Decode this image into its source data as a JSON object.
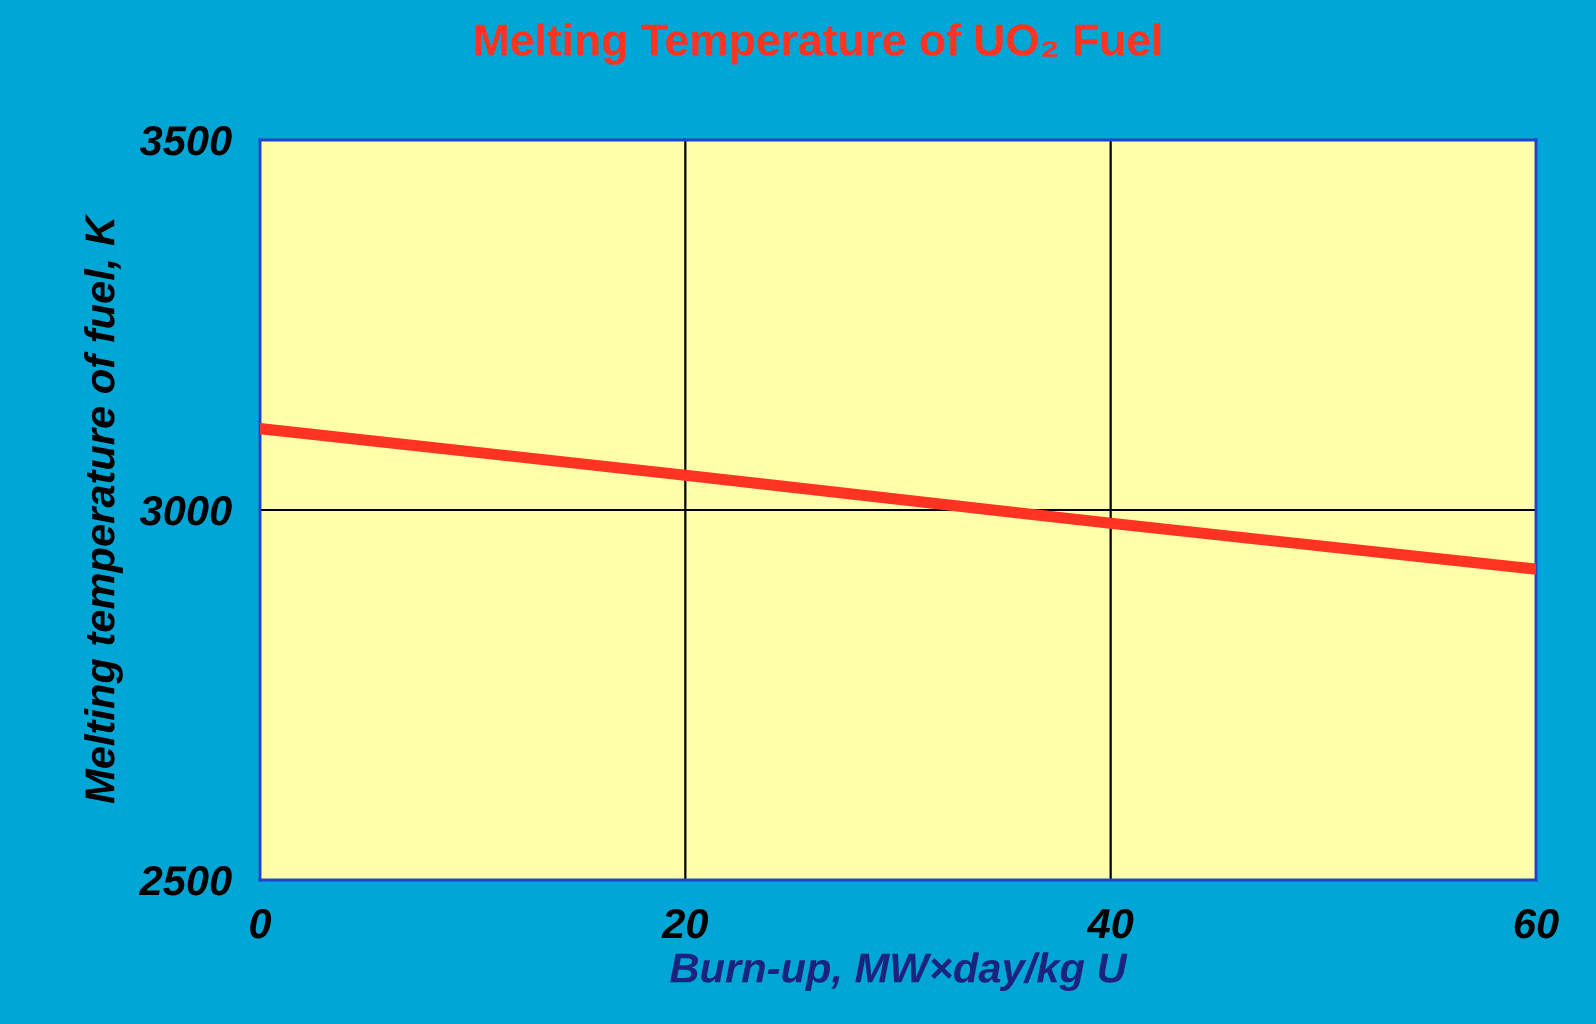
{
  "chart_data": {
    "type": "line",
    "title": "Melting Temperature of UO₂ Fuel",
    "xlabel": "Burn-up, MW×day/kg U",
    "ylabel": "Melting temperature of fuel, K",
    "x": [
      0,
      20,
      40,
      60
    ],
    "series": [
      {
        "color": "#ff3322",
        "values": [
          3110,
          3047,
          2982,
          2920
        ]
      }
    ],
    "xlim": [
      0,
      60
    ],
    "ylim": [
      2500,
      3500
    ],
    "xticks": [
      0,
      20,
      40,
      60
    ],
    "yticks": [
      2500,
      3000,
      3500
    ],
    "grid": true,
    "marker": "none",
    "line_style": "solid",
    "legend": false
  }
}
